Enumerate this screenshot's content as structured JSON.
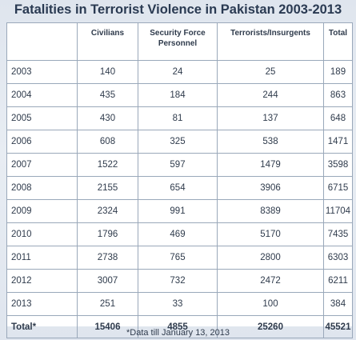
{
  "chart_data": {
    "type": "table",
    "title": "Fatalities in Terrorist Violence in Pakistan 2003-2013",
    "columns": [
      "",
      "Civilians",
      "Security Force Personnel",
      "Terrorists/Insurgents",
      "Total"
    ],
    "rows": [
      {
        "year": "2003",
        "values": [
          "140",
          "24",
          "25",
          "189"
        ]
      },
      {
        "year": "2004",
        "values": [
          "435",
          "184",
          "244",
          "863"
        ]
      },
      {
        "year": "2005",
        "values": [
          "430",
          "81",
          "137",
          "648"
        ]
      },
      {
        "year": "2006",
        "values": [
          "608",
          "325",
          "538",
          "1471"
        ]
      },
      {
        "year": "2007",
        "values": [
          "1522",
          "597",
          "1479",
          "3598"
        ]
      },
      {
        "year": "2008",
        "values": [
          "2155",
          "654",
          "3906",
          "6715"
        ]
      },
      {
        "year": "2009",
        "values": [
          "2324",
          "991",
          "8389",
          "11704"
        ]
      },
      {
        "year": "2010",
        "values": [
          "1796",
          "469",
          "5170",
          "7435"
        ]
      },
      {
        "year": "2011",
        "values": [
          "2738",
          "765",
          "2800",
          "6303"
        ]
      },
      {
        "year": "2012",
        "values": [
          "3007",
          "732",
          "2472",
          "6211"
        ]
      },
      {
        "year": "2013",
        "values": [
          "251",
          "33",
          "100",
          "384"
        ]
      }
    ],
    "total_row": {
      "label": "Total*",
      "values": [
        "15406",
        "4855",
        "25260",
        "45521"
      ]
    },
    "footnote": "*Data till January 13, 2013"
  }
}
